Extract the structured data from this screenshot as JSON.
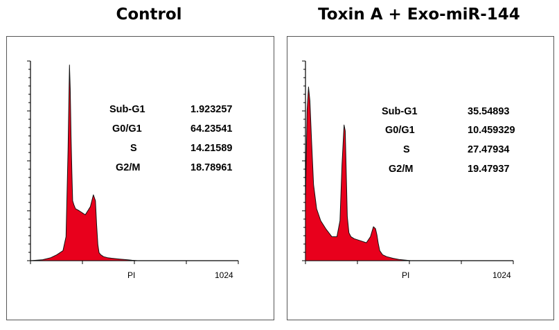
{
  "chart_data": [
    {
      "type": "area",
      "title": "Control",
      "xlabel": "PI",
      "x_max_label": "1024",
      "stats": [
        {
          "phase": "Sub-G1",
          "value": "1.923257"
        },
        {
          "phase": "G0/G1",
          "value": "64.23541"
        },
        {
          "phase": "S",
          "value": "14.21589"
        },
        {
          "phase": "G2/M",
          "value": "18.78961"
        }
      ],
      "xlim": [
        0,
        1024
      ],
      "ylim": [
        0,
        100
      ],
      "x": [
        0,
        60,
        100,
        130,
        160,
        175,
        185,
        192,
        196,
        200,
        204,
        208,
        214,
        222,
        240,
        270,
        295,
        310,
        320,
        326,
        332,
        338,
        346,
        360,
        380,
        400,
        420,
        440,
        460,
        480,
        500,
        530
      ],
      "y": [
        0,
        0.5,
        1.5,
        3,
        5,
        12,
        55,
        98,
        86,
        62,
        44,
        30,
        28,
        26,
        25,
        23,
        27,
        33,
        30,
        18,
        8,
        4,
        3,
        2,
        1.5,
        1.2,
        1,
        0.8,
        0.6,
        0.4,
        0.2,
        0
      ],
      "fill_color": "#e8001c"
    },
    {
      "type": "area",
      "title": "Toxin A + Exo-miR-144",
      "xlabel": "PI",
      "x_max_label": "1024",
      "stats": [
        {
          "phase": "Sub-G1",
          "value": "35.54893"
        },
        {
          "phase": "G0/G1",
          "value": "10.459329"
        },
        {
          "phase": "S",
          "value": "27.47934"
        },
        {
          "phase": "G2/M",
          "value": "19.47937"
        }
      ],
      "xlim": [
        0,
        1024
      ],
      "ylim": [
        0,
        100
      ],
      "x": [
        0,
        8,
        15,
        22,
        30,
        40,
        55,
        75,
        100,
        130,
        155,
        170,
        180,
        190,
        196,
        200,
        206,
        214,
        224,
        240,
        270,
        300,
        320,
        335,
        345,
        352,
        358,
        366,
        380,
        400,
        430,
        460,
        490,
        520
      ],
      "y": [
        30,
        75,
        87,
        80,
        60,
        38,
        26,
        20,
        16,
        12,
        12,
        20,
        48,
        68,
        65,
        48,
        22,
        14,
        12,
        11,
        10,
        9,
        12,
        17,
        16,
        13,
        9,
        5,
        3,
        2,
        1.2,
        0.6,
        0.3,
        0
      ],
      "fill_color": "#e8001c"
    }
  ]
}
